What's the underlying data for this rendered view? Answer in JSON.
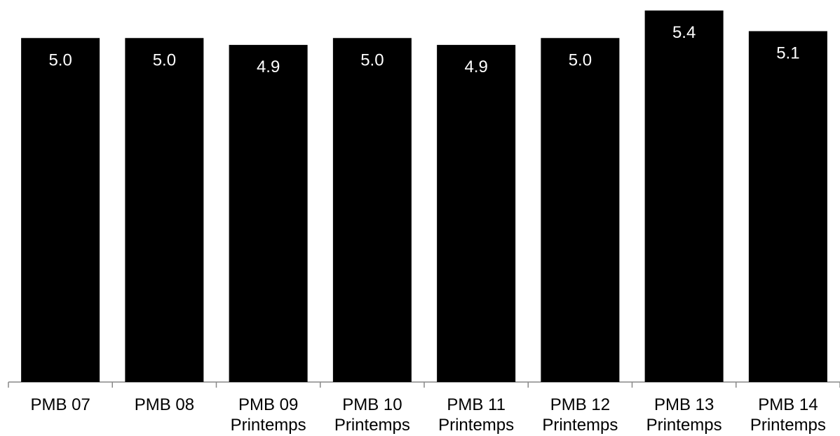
{
  "chart_data": {
    "type": "bar",
    "categories": [
      [
        "PMB 07"
      ],
      [
        "PMB 08"
      ],
      [
        "PMB 09",
        "Printemps"
      ],
      [
        "PMB 10",
        "Printemps"
      ],
      [
        "PMB 11",
        "Printemps"
      ],
      [
        "PMB 12",
        "Printemps"
      ],
      [
        "PMB 13",
        "Printemps"
      ],
      [
        "PMB 14",
        "Printemps"
      ]
    ],
    "values": [
      5.0,
      5.0,
      4.9,
      5.0,
      4.9,
      5.0,
      5.4,
      5.1
    ],
    "value_labels": [
      "5.0",
      "5.0",
      "4.9",
      "5.0",
      "4.9",
      "5.0",
      "5.4",
      "5.1"
    ],
    "title": "",
    "xlabel": "",
    "ylabel": "",
    "ylim": [
      0,
      5.4
    ],
    "grid": false,
    "legend": "none",
    "bar_color": "#000000",
    "value_label_color": "#ffffff",
    "axis_color": "#888888"
  }
}
